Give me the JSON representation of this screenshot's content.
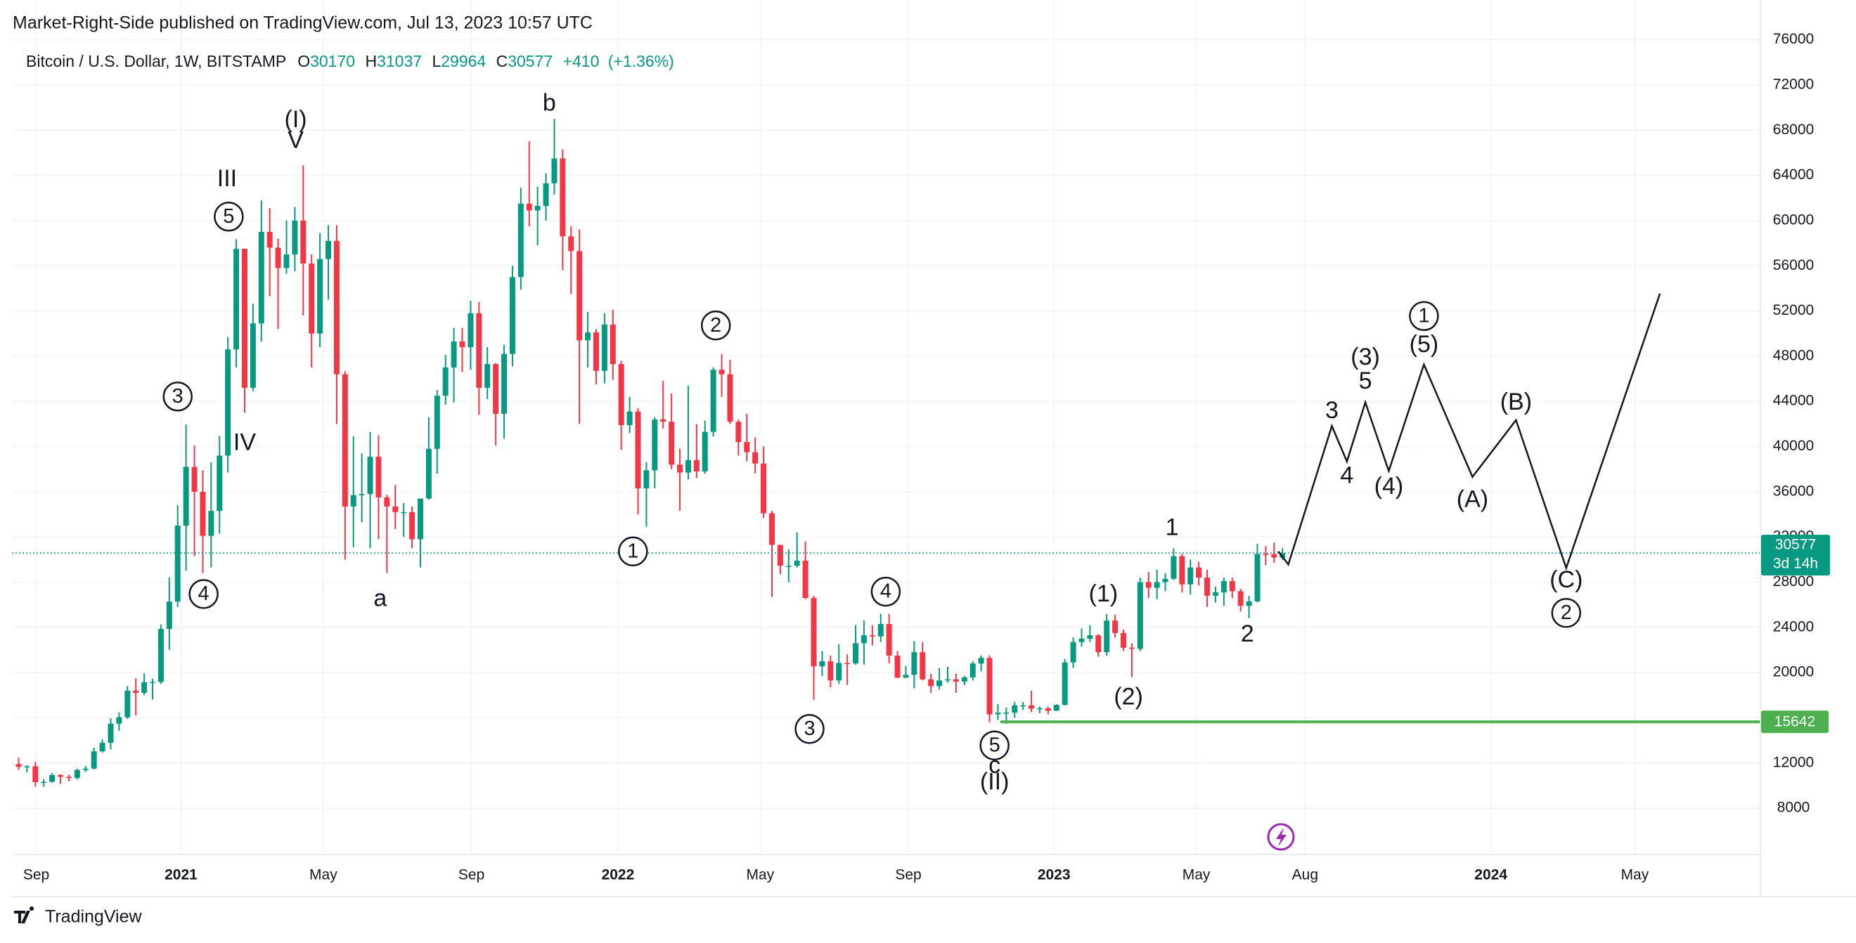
{
  "header": {
    "publisher": "Market-Right-Side published on TradingView.com, Jul 13, 2023 10:57 UTC",
    "brand": "TradingView"
  },
  "chart_data": {
    "type": "candlestick",
    "symbol": "Bitcoin / U.S. Dollar, 1W, BITSTAMP",
    "legend_letters": [
      "O",
      "H",
      "L",
      "C"
    ],
    "change": {
      "value": 410,
      "label": "+410"
    },
    "change_pct": {
      "value": 1.36,
      "label": "(+1.36%)"
    },
    "countdown": "3d 14h",
    "up_color": "#089981",
    "down_color": "#f23645",
    "candles": [
      [
        11900,
        12470,
        11370,
        11650
      ],
      [
        11650,
        11800,
        11150,
        11700
      ],
      [
        11700,
        12090,
        9900,
        10300
      ],
      [
        10300,
        10590,
        9880,
        10330
      ],
      [
        10330,
        11100,
        10260,
        10930
      ],
      [
        10930,
        10990,
        10140,
        10770
      ],
      [
        10770,
        10950,
        10370,
        10670
      ],
      [
        10670,
        11490,
        10530,
        11380
      ],
      [
        11380,
        11720,
        11200,
        11500
      ],
      [
        11500,
        13350,
        11420,
        13030
      ],
      [
        13030,
        14080,
        12900,
        13780
      ],
      [
        13780,
        15960,
        13200,
        15480
      ],
      [
        15480,
        16480,
        14840,
        16050
      ],
      [
        16050,
        18800,
        15890,
        18400
      ],
      [
        18400,
        19480,
        16200,
        18200
      ],
      [
        18200,
        19920,
        18000,
        19150
      ],
      [
        19150,
        19450,
        17620,
        19160
      ],
      [
        19160,
        24250,
        19000,
        23860
      ],
      [
        23860,
        28400,
        22000,
        26280
      ],
      [
        26280,
        34800,
        25800,
        33000
      ],
      [
        33000,
        41950,
        29000,
        38200
      ],
      [
        38200,
        40100,
        30300,
        36000
      ],
      [
        36000,
        37900,
        28800,
        32100
      ],
      [
        32100,
        38600,
        29300,
        34300
      ],
      [
        34300,
        40950,
        32300,
        39200
      ],
      [
        39200,
        49700,
        37700,
        48600
      ],
      [
        48600,
        58350,
        47000,
        57500
      ],
      [
        57500,
        57500,
        43000,
        45200
      ],
      [
        45200,
        52650,
        44900,
        50900
      ],
      [
        50900,
        61780,
        49300,
        59000
      ],
      [
        59000,
        61100,
        53300,
        57600
      ],
      [
        57600,
        58400,
        50400,
        55800
      ],
      [
        55800,
        60000,
        55300,
        57000
      ],
      [
        57000,
        61200,
        55500,
        60000
      ],
      [
        60000,
        64900,
        51600,
        56200
      ],
      [
        56200,
        57000,
        47000,
        50000
      ],
      [
        50000,
        58900,
        48800,
        56600
      ],
      [
        56600,
        59600,
        53000,
        58200
      ],
      [
        58200,
        59600,
        42000,
        46400
      ],
      [
        46400,
        46700,
        30000,
        34700
      ],
      [
        34700,
        40900,
        31100,
        35700
      ],
      [
        35700,
        39400,
        33300,
        35800
      ],
      [
        35800,
        41300,
        31000,
        39100
      ],
      [
        39100,
        41000,
        31800,
        35500
      ],
      [
        35500,
        35750,
        28800,
        34700
      ],
      [
        34700,
        36600,
        32700,
        34200
      ],
      [
        34200,
        35000,
        32000,
        34200
      ],
      [
        34200,
        34700,
        31000,
        31800
      ],
      [
        31800,
        35400,
        29300,
        35400
      ],
      [
        35400,
        42600,
        35300,
        39800
      ],
      [
        39800,
        45000,
        37600,
        44500
      ],
      [
        44500,
        48100,
        43700,
        47000
      ],
      [
        47000,
        50500,
        43900,
        49300
      ],
      [
        49300,
        50500,
        46600,
        48800
      ],
      [
        48800,
        52900,
        46800,
        51800
      ],
      [
        51800,
        52800,
        42800,
        45200
      ],
      [
        45200,
        48800,
        44200,
        47300
      ],
      [
        47300,
        47400,
        40100,
        42900
      ],
      [
        42900,
        49000,
        40700,
        48200
      ],
      [
        48200,
        56000,
        47100,
        55000
      ],
      [
        55000,
        62900,
        53900,
        61500
      ],
      [
        61500,
        67000,
        59500,
        60900
      ],
      [
        60900,
        63000,
        57800,
        61300
      ],
      [
        61300,
        64200,
        60000,
        63300
      ],
      [
        63300,
        69000,
        62300,
        65500
      ],
      [
        65500,
        66300,
        55600,
        58600
      ],
      [
        58600,
        59500,
        53500,
        57300
      ],
      [
        57300,
        59200,
        42000,
        49400
      ],
      [
        49400,
        51900,
        47000,
        50100
      ],
      [
        50100,
        50400,
        45500,
        46700
      ],
      [
        46700,
        51800,
        45600,
        50800
      ],
      [
        50800,
        52100,
        45900,
        47300
      ],
      [
        47300,
        47600,
        39700,
        41900
      ],
      [
        41900,
        44400,
        41200,
        43100
      ],
      [
        43100,
        43400,
        34000,
        36300
      ],
      [
        36300,
        38600,
        32900,
        37900
      ],
      [
        37900,
        42600,
        36300,
        42400
      ],
      [
        42400,
        45800,
        41600,
        42200
      ],
      [
        42200,
        44700,
        38000,
        38400
      ],
      [
        38400,
        39800,
        34300,
        37700
      ],
      [
        37700,
        45400,
        37100,
        38800
      ],
      [
        38800,
        42000,
        37200,
        37800
      ],
      [
        37800,
        42300,
        37600,
        41300
      ],
      [
        41300,
        47000,
        40900,
        46800
      ],
      [
        46800,
        48200,
        44400,
        46400
      ],
      [
        46400,
        47700,
        42000,
        42200
      ],
      [
        42200,
        42400,
        39200,
        40400
      ],
      [
        40400,
        42900,
        38700,
        39500
      ],
      [
        39500,
        40800,
        37600,
        38500
      ],
      [
        38500,
        40000,
        33700,
        34100
      ],
      [
        34100,
        34300,
        26700,
        31300
      ],
      [
        31300,
        31300,
        28700,
        29450
      ],
      [
        29450,
        30900,
        28000,
        29450
      ],
      [
        29450,
        32400,
        29300,
        29900
      ],
      [
        29900,
        31600,
        26500,
        26600
      ],
      [
        26600,
        26800,
        17600,
        20550
      ],
      [
        20550,
        21900,
        19700,
        21000
      ],
      [
        21000,
        21500,
        18700,
        19300
      ],
      [
        19300,
        22500,
        19000,
        20850
      ],
      [
        20850,
        21600,
        18900,
        20800
      ],
      [
        20800,
        24200,
        20700,
        22600
      ],
      [
        22600,
        24600,
        20700,
        23300
      ],
      [
        23300,
        24200,
        22400,
        23200
      ],
      [
        23200,
        25200,
        22700,
        24300
      ],
      [
        24300,
        25200,
        20800,
        21500
      ],
      [
        21500,
        21900,
        19500,
        19550
      ],
      [
        19550,
        20600,
        19500,
        19800
      ],
      [
        19800,
        22800,
        18600,
        21800
      ],
      [
        21800,
        22700,
        19300,
        19400
      ],
      [
        19400,
        19900,
        18200,
        18800
      ],
      [
        18800,
        20400,
        18500,
        19300
      ],
      [
        19300,
        20500,
        19100,
        19400
      ],
      [
        19400,
        19900,
        18200,
        19200
      ],
      [
        19200,
        19700,
        18900,
        19570
      ],
      [
        19570,
        21000,
        19300,
        20800
      ],
      [
        20800,
        21500,
        20100,
        21300
      ],
      [
        21300,
        21500,
        15600,
        16300
      ],
      [
        16300,
        17200,
        15800,
        16450
      ],
      [
        16450,
        16900,
        15460,
        16450
      ],
      [
        16450,
        17400,
        16000,
        17100
      ],
      [
        17100,
        17400,
        16700,
        17100
      ],
      [
        17100,
        18400,
        16500,
        16800
      ],
      [
        16800,
        17000,
        16400,
        16840
      ],
      [
        16840,
        16970,
        16300,
        16620
      ],
      [
        16620,
        17200,
        16600,
        17130
      ],
      [
        17130,
        21200,
        17100,
        20900
      ],
      [
        20900,
        23100,
        20400,
        22700
      ],
      [
        22700,
        23900,
        22300,
        23000
      ],
      [
        23000,
        24200,
        22700,
        23300
      ],
      [
        23300,
        23400,
        21400,
        21800
      ],
      [
        21800,
        25200,
        21500,
        24600
      ],
      [
        24600,
        25100,
        23100,
        23500
      ],
      [
        23500,
        23800,
        21900,
        22200
      ],
      [
        22200,
        22600,
        19600,
        22100
      ],
      [
        22100,
        28400,
        21900,
        28000
      ],
      [
        28000,
        28900,
        26600,
        27500
      ],
      [
        27500,
        29100,
        26500,
        28000
      ],
      [
        28000,
        28800,
        27200,
        28300
      ],
      [
        28300,
        31000,
        28200,
        30300
      ],
      [
        30300,
        30500,
        27100,
        27800
      ],
      [
        27800,
        30000,
        26900,
        29300
      ],
      [
        29300,
        29800,
        27700,
        28400
      ],
      [
        28400,
        29100,
        25800,
        26800
      ],
      [
        26800,
        27600,
        26200,
        27100
      ],
      [
        27100,
        28400,
        25900,
        28100
      ],
      [
        28100,
        28400,
        26600,
        27200
      ],
      [
        27200,
        27400,
        25400,
        25900
      ],
      [
        25900,
        26800,
        24800,
        26300
      ],
      [
        26300,
        31400,
        26200,
        30500
      ],
      [
        30500,
        31200,
        29500,
        30480
      ],
      [
        30480,
        31500,
        29700,
        30170
      ],
      [
        30170,
        31037,
        29964,
        30577
      ]
    ],
    "xlim": [
      -0.8,
      208.1
    ],
    "xticks": [
      {
        "value": 2.1,
        "label": "Sep"
      },
      {
        "value": 19.4,
        "label": "2021"
      },
      {
        "value": 36.4,
        "label": "May"
      },
      {
        "value": 54.1,
        "label": "Sep"
      },
      {
        "value": 71.6,
        "label": "2022"
      },
      {
        "value": 88.6,
        "label": "May"
      },
      {
        "value": 106.3,
        "label": "Sep"
      },
      {
        "value": 123.7,
        "label": "2023"
      },
      {
        "value": 140.7,
        "label": "May"
      },
      {
        "value": 153.7,
        "label": "Aug"
      },
      {
        "value": 175.9,
        "label": "2024"
      },
      {
        "value": 193.1,
        "label": "May"
      }
    ],
    "ylim": [
      3900,
      76600
    ],
    "yticks": [
      8000,
      12000,
      16000,
      20000,
      24000,
      28000,
      32000,
      36000,
      40000,
      44000,
      48000,
      52000,
      56000,
      60000,
      64000,
      68000,
      72000,
      76000
    ],
    "grid": true,
    "level": {
      "value": 15642,
      "from": 117.3,
      "color": "#4caf50"
    },
    "projection": {
      "color": "#131722",
      "x": [
        150.5,
        151.7,
        156.9,
        158.7,
        160.9,
        163.7,
        167.9,
        173.7,
        178.9,
        184.9,
        196.1
      ],
      "y": [
        30720,
        29570,
        41820,
        38680,
        43910,
        37840,
        47260,
        37320,
        42340,
        29250,
        53540
      ]
    },
    "annotations": [
      {
        "text": "(I)",
        "x": 33.1,
        "y": 68830,
        "color": "#2962ff"
      },
      {
        "text": "V",
        "x": 33.1,
        "y": 67000,
        "color": "#f23645"
      },
      {
        "text": "III",
        "x": 24.9,
        "y": 63600,
        "color": "#f23645"
      },
      {
        "text": "5",
        "x": 25.1,
        "y": 60350,
        "color": "#131722",
        "circled": true
      },
      {
        "text": "3",
        "x": 19.0,
        "y": 44430,
        "color": "#131722",
        "circled": true
      },
      {
        "text": "IV",
        "x": 27.0,
        "y": 40250,
        "color": "#f23645"
      },
      {
        "text": "4",
        "x": 22.1,
        "y": 26950,
        "color": "#131722",
        "circled": true
      },
      {
        "text": "b",
        "x": 63.4,
        "y": 70300,
        "color": "#f23645"
      },
      {
        "text": "a",
        "x": 43.2,
        "y": 26430,
        "color": "#f23645"
      },
      {
        "text": "1",
        "x": 73.4,
        "y": 30720,
        "color": "#131722",
        "circled": true
      },
      {
        "text": "2",
        "x": 83.3,
        "y": 50720,
        "color": "#131722",
        "circled": true
      },
      {
        "text": "4",
        "x": 103.6,
        "y": 27160,
        "color": "#131722",
        "circled": true
      },
      {
        "text": "3",
        "x": 94.5,
        "y": 15010,
        "color": "#131722",
        "circled": true
      },
      {
        "text": "5",
        "x": 116.6,
        "y": 13550,
        "color": "#131722",
        "circled": true
      },
      {
        "text": "c",
        "x": 116.6,
        "y": 11660,
        "color": "#f23645"
      },
      {
        "text": "(II)",
        "x": 116.6,
        "y": 10200,
        "color": "#2962ff"
      },
      {
        "text": "(1)",
        "x": 129.6,
        "y": 26850,
        "color": "#2962ff"
      },
      {
        "text": "(2)",
        "x": 132.6,
        "y": 17740,
        "color": "#2962ff"
      },
      {
        "text": "1",
        "x": 137.8,
        "y": 32710,
        "color": "#f23645"
      },
      {
        "text": "2",
        "x": 146.8,
        "y": 23290,
        "color": "#f23645"
      },
      {
        "text": "3",
        "x": 156.9,
        "y": 43070,
        "color": "#f23645"
      },
      {
        "text": "4",
        "x": 158.7,
        "y": 37320,
        "color": "#f23645"
      },
      {
        "text": "5",
        "x": 160.9,
        "y": 45690,
        "color": "#f23645"
      },
      {
        "text": "(3)",
        "x": 160.9,
        "y": 47790,
        "color": "#2962ff"
      },
      {
        "text": "(4)",
        "x": 163.7,
        "y": 36370,
        "color": "#2962ff"
      },
      {
        "text": "1",
        "x": 167.9,
        "y": 51550,
        "color": "#131722",
        "circled": true
      },
      {
        "text": "(5)",
        "x": 167.9,
        "y": 48940,
        "color": "#2962ff"
      },
      {
        "text": "(A)",
        "x": 173.7,
        "y": 35220,
        "color": "#2962ff"
      },
      {
        "text": "(B)",
        "x": 178.9,
        "y": 43810,
        "color": "#2962ff"
      },
      {
        "text": "(C)",
        "x": 184.9,
        "y": 28100,
        "color": "#2962ff"
      },
      {
        "text": "2",
        "x": 184.9,
        "y": 25280,
        "color": "#131722",
        "circled": true
      }
    ]
  }
}
